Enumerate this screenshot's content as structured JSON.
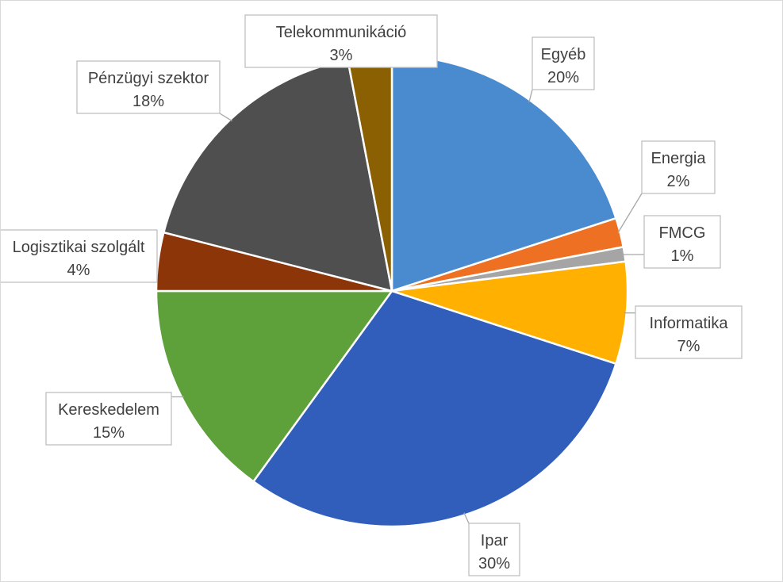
{
  "chart_data": {
    "type": "pie",
    "legend": "none",
    "data_labels": "category-and-percent callouts",
    "slices": [
      {
        "label": "Egyéb",
        "value": 20,
        "percent_text": "20%",
        "color": "#4A8BD0"
      },
      {
        "label": "Energia",
        "value": 2,
        "percent_text": "2%",
        "color": "#ED7023"
      },
      {
        "label": "FMCG",
        "value": 1,
        "percent_text": "1%",
        "color": "#A5A5A5"
      },
      {
        "label": "Informatika",
        "value": 7,
        "percent_text": "7%",
        "color": "#FFB000"
      },
      {
        "label": "Ipar",
        "value": 30,
        "percent_text": "30%",
        "color": "#305EBA"
      },
      {
        "label": "Kereskedelem",
        "value": 15,
        "percent_text": "15%",
        "color": "#5EA03A"
      },
      {
        "label": "Logisztikai szolgált",
        "value": 4,
        "percent_text": "4%",
        "color": "#8B3508"
      },
      {
        "label": "Pénzügyi szektor",
        "value": 18,
        "percent_text": "18%",
        "color": "#4F4F4F"
      },
      {
        "label": "Telekommunikáció",
        "value": 3,
        "percent_text": "3%",
        "color": "#8B6003"
      }
    ]
  }
}
